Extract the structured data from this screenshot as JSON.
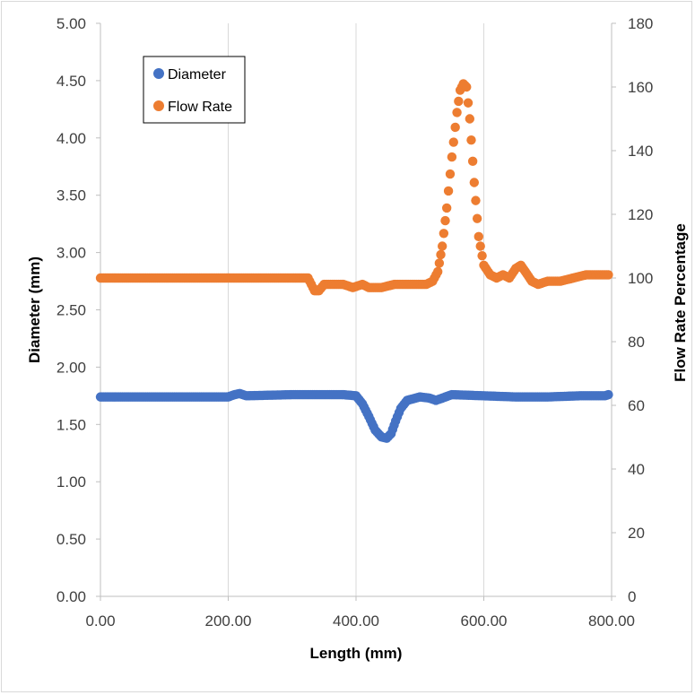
{
  "chart_data": {
    "type": "scatter",
    "title": "",
    "xlabel": "Length (mm)",
    "ylabel": "Diameter (mm)",
    "y2label": "Flow Rate Percentage",
    "xlim": [
      0,
      800
    ],
    "ylim": [
      0,
      5
    ],
    "y2lim": [
      0,
      180
    ],
    "x_ticks": [
      "0.00",
      "200.00",
      "400.00",
      "600.00",
      "800.00"
    ],
    "y_ticks": [
      "0.00",
      "0.50",
      "1.00",
      "1.50",
      "2.00",
      "2.50",
      "3.00",
      "3.50",
      "4.00",
      "4.50",
      "5.00"
    ],
    "y2_ticks": [
      "0",
      "20",
      "40",
      "60",
      "80",
      "100",
      "120",
      "140",
      "160",
      "180"
    ],
    "grid": "vertical",
    "legend_position": "top-left",
    "series": [
      {
        "name": "Diameter",
        "axis": "left",
        "color": "#4472C4",
        "points": [
          [
            0,
            1.74
          ],
          [
            100,
            1.74
          ],
          [
            200,
            1.74
          ],
          [
            210,
            1.76
          ],
          [
            218,
            1.77
          ],
          [
            228,
            1.75
          ],
          [
            300,
            1.76
          ],
          [
            340,
            1.76
          ],
          [
            380,
            1.76
          ],
          [
            400,
            1.75
          ],
          [
            410,
            1.68
          ],
          [
            420,
            1.57
          ],
          [
            430,
            1.45
          ],
          [
            440,
            1.39
          ],
          [
            448,
            1.38
          ],
          [
            455,
            1.42
          ],
          [
            462,
            1.53
          ],
          [
            470,
            1.64
          ],
          [
            480,
            1.71
          ],
          [
            500,
            1.74
          ],
          [
            515,
            1.73
          ],
          [
            525,
            1.71
          ],
          [
            535,
            1.73
          ],
          [
            550,
            1.76
          ],
          [
            600,
            1.75
          ],
          [
            650,
            1.74
          ],
          [
            700,
            1.74
          ],
          [
            750,
            1.75
          ],
          [
            790,
            1.75
          ],
          [
            795,
            1.76
          ]
        ]
      },
      {
        "name": "Flow Rate",
        "axis": "right",
        "color": "#ED7D31",
        "points": [
          [
            0,
            100
          ],
          [
            100,
            100
          ],
          [
            200,
            100
          ],
          [
            300,
            100
          ],
          [
            325,
            100
          ],
          [
            330,
            98
          ],
          [
            335,
            96
          ],
          [
            342,
            96
          ],
          [
            350,
            98
          ],
          [
            360,
            98
          ],
          [
            380,
            98
          ],
          [
            395,
            97
          ],
          [
            410,
            98
          ],
          [
            420,
            97
          ],
          [
            440,
            97
          ],
          [
            460,
            98
          ],
          [
            480,
            98
          ],
          [
            495,
            98
          ],
          [
            510,
            98
          ],
          [
            520,
            99
          ],
          [
            528,
            102
          ],
          [
            535,
            110
          ],
          [
            542,
            122
          ],
          [
            550,
            138
          ],
          [
            558,
            152
          ],
          [
            563,
            159
          ],
          [
            568,
            161
          ],
          [
            573,
            160
          ],
          [
            578,
            150
          ],
          [
            585,
            130
          ],
          [
            592,
            113
          ],
          [
            600,
            104
          ],
          [
            610,
            101
          ],
          [
            620,
            100
          ],
          [
            630,
            101
          ],
          [
            640,
            100
          ],
          [
            650,
            103
          ],
          [
            658,
            104
          ],
          [
            665,
            102
          ],
          [
            675,
            99
          ],
          [
            685,
            98
          ],
          [
            700,
            99
          ],
          [
            720,
            99
          ],
          [
            740,
            100
          ],
          [
            760,
            101
          ],
          [
            780,
            101
          ],
          [
            795,
            101
          ]
        ]
      }
    ]
  }
}
